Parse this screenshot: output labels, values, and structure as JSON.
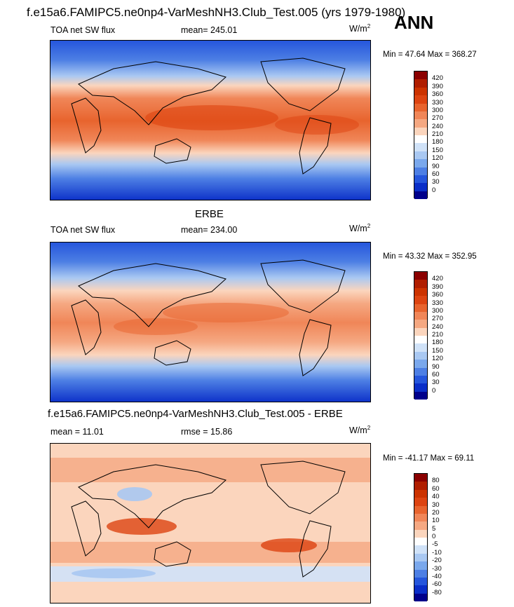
{
  "header": {
    "title": "f.e15a6.FAMIPC5.ne0np4-VarMeshNH3.Club_Test.005 (yrs 1979-1980)",
    "season": "ANN"
  },
  "chart_data": [
    {
      "type": "heatmap",
      "title": "",
      "left_label": "TOA net SW flux",
      "stat_label": "mean= 245.01",
      "unit_base": "W/m",
      "unit_exp": "2",
      "minmax": "Min =  47.64 Max = 368.27",
      "mean": 245.01,
      "min": 47.64,
      "max": 368.27,
      "colorbar_labels": [
        "420",
        "390",
        "360",
        "330",
        "300",
        "270",
        "240",
        "210",
        "180",
        "150",
        "120",
        "90",
        "60",
        "30",
        "0"
      ],
      "colorbar_colors": [
        "#8b0000",
        "#b01e00",
        "#cc3300",
        "#dd4411",
        "#e8642e",
        "#f08658",
        "#f5a882",
        "#fbd5bd",
        "#ffffff",
        "#d0e2f8",
        "#a9c8f2",
        "#7aa8ec",
        "#4d7fe4",
        "#2556dc",
        "#0a2ec8",
        "#00008b"
      ]
    },
    {
      "type": "heatmap",
      "title": "ERBE",
      "left_label": "TOA net SW flux",
      "stat_label": "mean= 234.00",
      "unit_base": "W/m",
      "unit_exp": "2",
      "minmax": "Min =  43.32 Max = 352.95",
      "mean": 234.0,
      "min": 43.32,
      "max": 352.95,
      "colorbar_labels": [
        "420",
        "390",
        "360",
        "330",
        "300",
        "270",
        "240",
        "210",
        "180",
        "150",
        "120",
        "90",
        "60",
        "30",
        "0"
      ],
      "colorbar_colors": [
        "#8b0000",
        "#b01e00",
        "#cc3300",
        "#dd4411",
        "#e8642e",
        "#f08658",
        "#f5a882",
        "#fbd5bd",
        "#ffffff",
        "#d0e2f8",
        "#a9c8f2",
        "#7aa8ec",
        "#4d7fe4",
        "#2556dc",
        "#0a2ec8",
        "#00008b"
      ]
    },
    {
      "type": "heatmap",
      "title": "f.e15a6.FAMIPC5.ne0np4-VarMeshNH3.Club_Test.005 - ERBE",
      "left_label": "mean =  11.01",
      "stat_label": "rmse =  15.86",
      "unit_base": "W/m",
      "unit_exp": "2",
      "minmax": "Min = -41.17 Max =  69.11",
      "mean": 11.01,
      "rmse": 15.86,
      "min": -41.17,
      "max": 69.11,
      "colorbar_labels": [
        "80",
        "60",
        "40",
        "30",
        "20",
        "10",
        "5",
        "0",
        "-5",
        "-10",
        "-20",
        "-30",
        "-40",
        "-60",
        "-80"
      ],
      "colorbar_colors": [
        "#8b0000",
        "#b01e00",
        "#cc3300",
        "#dd4411",
        "#e8642e",
        "#f08658",
        "#f5a882",
        "#fbd5bd",
        "#ffffff",
        "#d0e2f8",
        "#a9c8f2",
        "#7aa8ec",
        "#4d7fe4",
        "#2556dc",
        "#0a2ec8",
        "#00008b"
      ]
    }
  ]
}
